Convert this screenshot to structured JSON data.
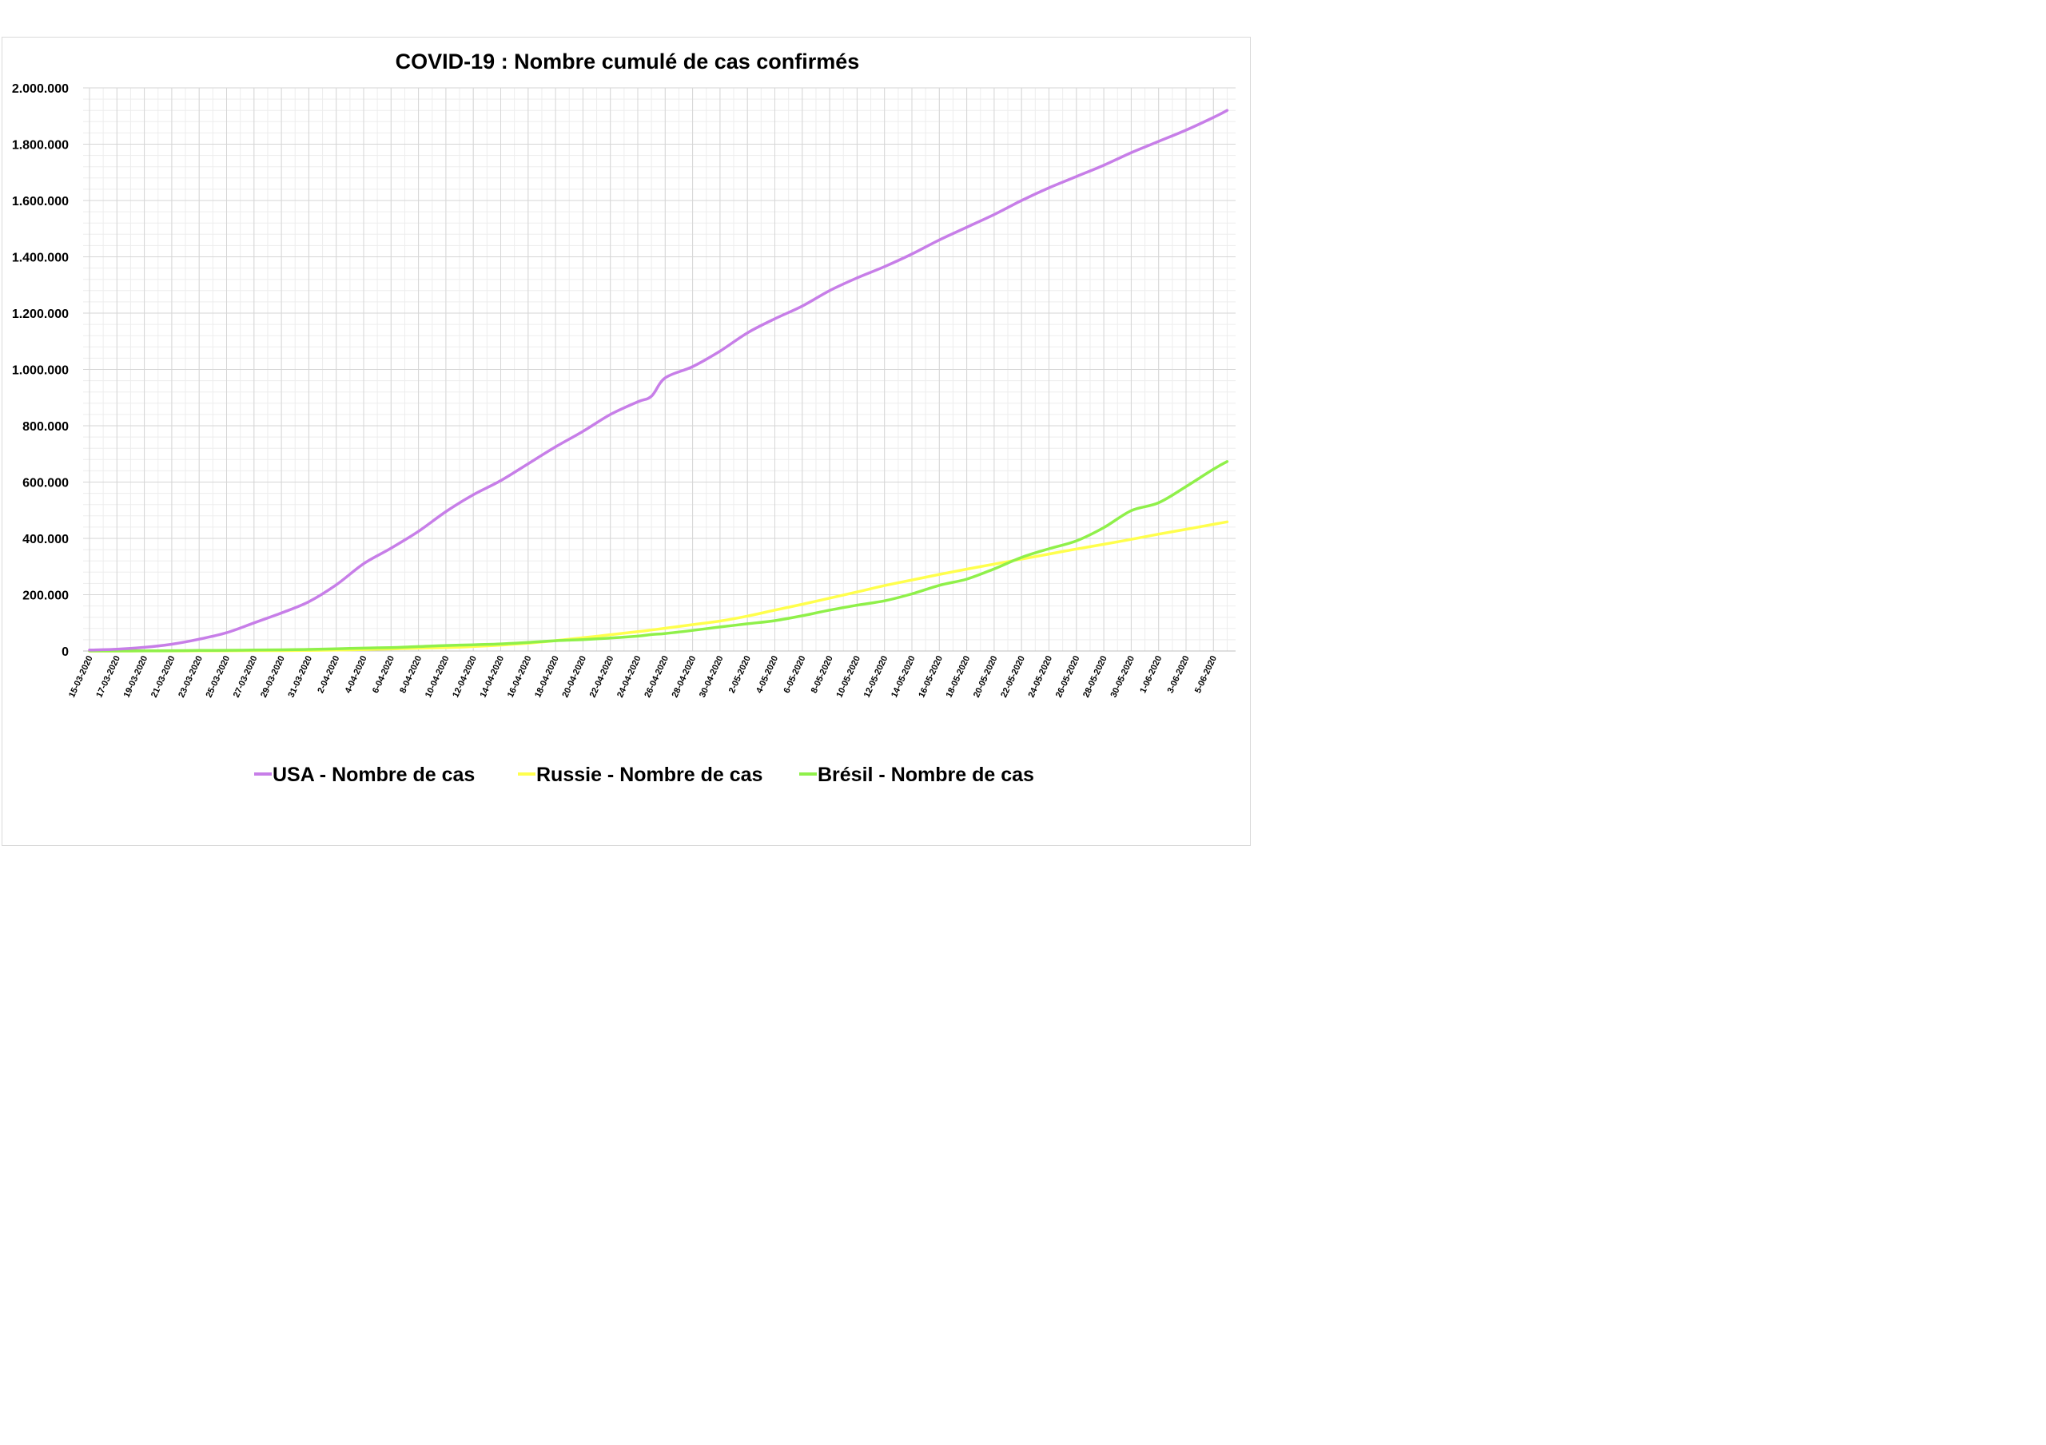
{
  "chart_data": {
    "type": "line",
    "title": "COVID-19 : Nombre cumulé de cas confirmés",
    "xlabel": "",
    "ylabel": "",
    "ylim": [
      0,
      2000000
    ],
    "grid": true,
    "legend_position": "bottom",
    "y_ticks": [
      {
        "value": 0,
        "label": "0"
      },
      {
        "value": 200000,
        "label": "200.000"
      },
      {
        "value": 400000,
        "label": "400.000"
      },
      {
        "value": 600000,
        "label": "600.000"
      },
      {
        "value": 800000,
        "label": "800.000"
      },
      {
        "value": 1000000,
        "label": "1.000.000"
      },
      {
        "value": 1200000,
        "label": "1.200.000"
      },
      {
        "value": 1400000,
        "label": "1.400.000"
      },
      {
        "value": 1600000,
        "label": "1.600.000"
      },
      {
        "value": 1800000,
        "label": "1.800.000"
      },
      {
        "value": 2000000,
        "label": "2.000.000"
      }
    ],
    "x_tick_labels": [
      "15-03-2020",
      "17-03-2020",
      "19-03-2020",
      "21-03-2020",
      "23-03-2020",
      "25-03-2020",
      "27-03-2020",
      "29-03-2020",
      "31-03-2020",
      "2-04-2020",
      "4-04-2020",
      "6-04-2020",
      "8-04-2020",
      "10-04-2020",
      "12-04-2020",
      "14-04-2020",
      "16-04-2020",
      "18-04-2020",
      "20-04-2020",
      "22-04-2020",
      "24-04-2020",
      "26-04-2020",
      "28-04-2020",
      "30-04-2020",
      "2-05-2020",
      "4-05-2020",
      "6-05-2020",
      "8-05-2020",
      "10-05-2020",
      "12-05-2020",
      "14-05-2020",
      "16-05-2020",
      "18-05-2020",
      "20-05-2020",
      "22-05-2020",
      "24-05-2020",
      "26-05-2020",
      "28-05-2020",
      "30-05-2020",
      "1-06-2020",
      "3-06-2020",
      "5-06-2020"
    ],
    "x": [
      "15-03-2020",
      "17-03-2020",
      "19-03-2020",
      "21-03-2020",
      "23-03-2020",
      "25-03-2020",
      "27-03-2020",
      "29-03-2020",
      "31-03-2020",
      "2-04-2020",
      "4-04-2020",
      "6-04-2020",
      "8-04-2020",
      "10-04-2020",
      "12-04-2020",
      "14-04-2020",
      "16-04-2020",
      "18-04-2020",
      "20-04-2020",
      "22-04-2020",
      "24-04-2020",
      "25-04-2020",
      "26-04-2020",
      "28-04-2020",
      "30-04-2020",
      "2-05-2020",
      "4-05-2020",
      "6-05-2020",
      "8-05-2020",
      "10-05-2020",
      "12-05-2020",
      "14-05-2020",
      "16-05-2020",
      "18-05-2020",
      "20-05-2020",
      "22-05-2020",
      "24-05-2020",
      "26-05-2020",
      "28-05-2020",
      "30-05-2020",
      "1-06-2020",
      "3-06-2020",
      "5-06-2020",
      "6-06-2020"
    ],
    "series": [
      {
        "name": "USA - Nombre de cas",
        "color": "#c77ee8",
        "values": [
          3500,
          6500,
          13000,
          24000,
          42000,
          65000,
          100000,
          135000,
          175000,
          235000,
          310000,
          365000,
          425000,
          495000,
          555000,
          605000,
          665000,
          725000,
          780000,
          840000,
          885000,
          905000,
          970000,
          1010000,
          1065000,
          1130000,
          1180000,
          1225000,
          1280000,
          1325000,
          1365000,
          1410000,
          1460000,
          1505000,
          1550000,
          1600000,
          1645000,
          1685000,
          1725000,
          1770000,
          1810000,
          1850000,
          1895000,
          1920000
        ]
      },
      {
        "name": "Russie - Nombre de cas",
        "color": "#ffff4d",
        "values": [
          60,
          110,
          200,
          300,
          500,
          850,
          1300,
          1550,
          2300,
          3500,
          5400,
          7500,
          10000,
          11900,
          15800,
          21100,
          27900,
          36800,
          47100,
          57900,
          68600,
          74600,
          80900,
          93600,
          106500,
          124000,
          145200,
          165900,
          187800,
          209700,
          232200,
          252200,
          272000,
          290700,
          308700,
          326400,
          344500,
          362300,
          379100,
          396600,
          414900,
          432300,
          449800,
          458700
        ]
      },
      {
        "name": "Brésil - Nombre de cas",
        "color": "#8ff04a",
        "values": [
          200,
          300,
          650,
          1100,
          1900,
          2500,
          3400,
          4300,
          5700,
          8000,
          10300,
          12200,
          15900,
          19700,
          22200,
          25300,
          30400,
          36600,
          40700,
          46000,
          52900,
          58500,
          62000,
          73200,
          85300,
          96600,
          107800,
          125200,
          145300,
          162700,
          178200,
          202900,
          233100,
          255400,
          291600,
          332400,
          363200,
          391200,
          438200,
          498400,
          526400,
          584000,
          645800,
          672800
        ]
      }
    ]
  }
}
